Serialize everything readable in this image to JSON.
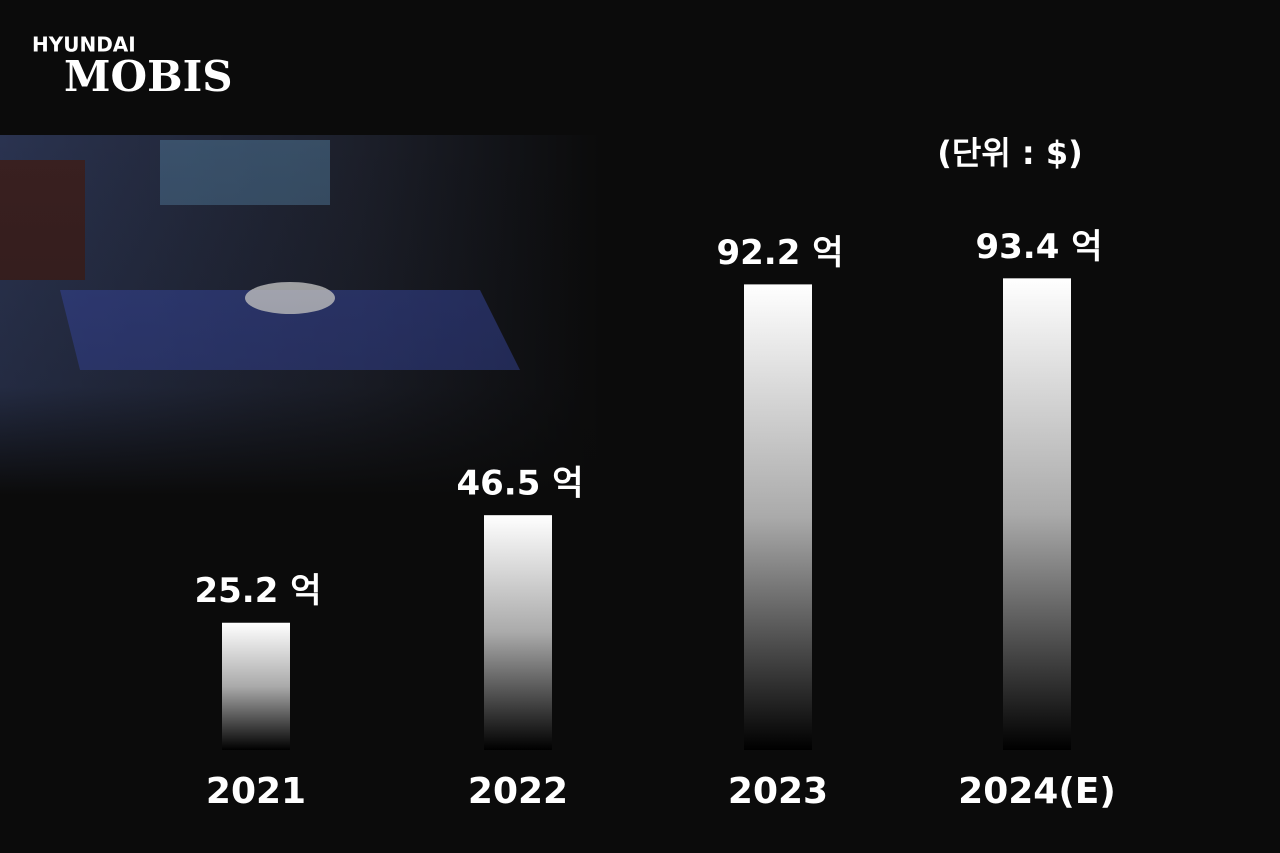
{
  "logo": {
    "line1": "HYUNDAI",
    "line2": "MOBIS"
  },
  "chart_data": {
    "type": "bar",
    "unit_note": "(단위 : $)",
    "categories": [
      "2021",
      "2022",
      "2023",
      "2024(E)"
    ],
    "values": [
      25.2,
      46.5,
      92.2,
      93.4
    ],
    "value_labels": [
      "25.2 억",
      "46.5 억",
      "92.2 억",
      "93.4 억"
    ],
    "color": "#ffffff"
  }
}
